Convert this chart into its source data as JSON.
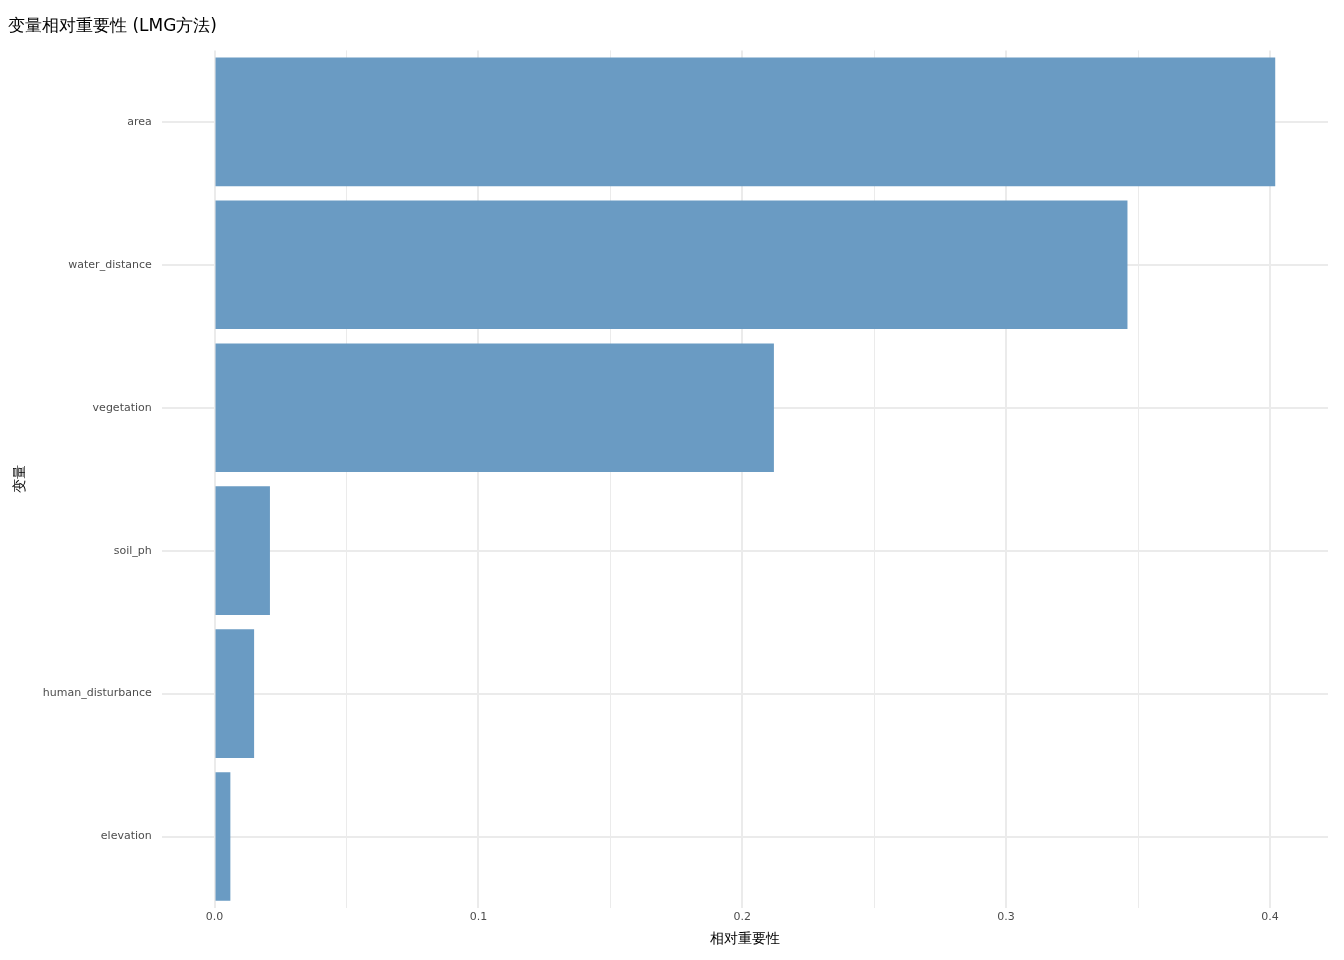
{
  "chart_data": {
    "type": "bar",
    "orientation": "horizontal",
    "title": "变量相对重要性 (LMG方法)",
    "xlabel": "相对重要性",
    "ylabel": "变量",
    "categories": [
      "area",
      "water_distance",
      "vegetation",
      "soil_ph",
      "human_disturbance",
      "elevation"
    ],
    "values": [
      0.402,
      0.346,
      0.212,
      0.021,
      0.015,
      0.006
    ],
    "color": "#6a9bc3",
    "xlim": [
      -0.02,
      0.422
    ],
    "xticks": [
      {
        "value": 0,
        "label": "0.0"
      },
      {
        "value": 0.05,
        "label": null
      },
      0.1,
      {
        "value": 0.15,
        "label": null
      },
      0.2,
      {
        "value": 0.25,
        "label": null
      },
      0.3,
      {
        "value": 0.35,
        "label": null
      },
      0.4
    ],
    "grid": true
  }
}
